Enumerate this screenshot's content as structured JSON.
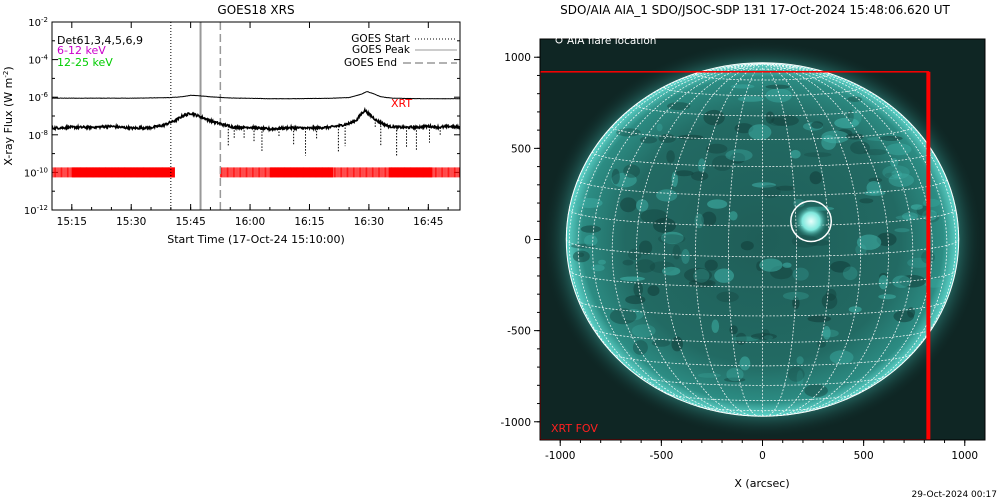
{
  "goes_chart": {
    "title": "GOES18 XRS",
    "ylabel": "X-ray Flux (W m",
    "ylabel_sup": "-2",
    "ylabel_close": ")",
    "xlabel": "Start Time (17-Oct-24 15:10:00)",
    "channels": {
      "det": "Det61,3,4,5,6,9",
      "low": "6-12 keV",
      "high": "12-25 keV"
    },
    "legend": {
      "start": "GOES Start",
      "peak": "GOES Peak",
      "end": "GOES End"
    },
    "xrt_label": "XRT",
    "colors": {
      "low_channel": "#cc00cc",
      "high_channel": "#00cc00",
      "xrt": "#ff0000"
    }
  },
  "aia_image": {
    "title": "SDO/AIA AIA_1 SDO/JSOC-SDP 131 17-Oct-2024 15:48:06.620 UT",
    "legend_label": "AIA flare location",
    "fov_label": "XRT FOV",
    "xlabel": "X (arcsec)",
    "colors": {
      "sun": "#2fa8a0",
      "fov": "#ff0000"
    }
  },
  "footer_timestamp": "29-Oct-2024 00:17",
  "chart_data": [
    {
      "type": "line",
      "title": "GOES18 XRS",
      "xlabel": "Start Time (17-Oct-24 15:10:00)",
      "ylabel": "X-ray Flux (W m-2)",
      "x_tick_labels": [
        "15:15",
        "15:30",
        "15:45",
        "16:00",
        "16:15",
        "16:30",
        "16:45"
      ],
      "x_ticks_min": [
        5,
        20,
        35,
        50,
        65,
        80,
        95
      ],
      "xlim_min": [
        0,
        103
      ],
      "y_tick_exponents": [
        -2,
        -4,
        -6,
        -8,
        -10,
        -12
      ],
      "ylim_log10": [
        -12,
        -2
      ],
      "y_scale": "log",
      "series": [
        {
          "name": "6-12 keV",
          "x_min": [
            0,
            10,
            20,
            25,
            30,
            33,
            35,
            37,
            40,
            45,
            50,
            55,
            60,
            65,
            70,
            75,
            78,
            79.5,
            81,
            83,
            86,
            90,
            95,
            100,
            103
          ],
          "log10_y": [
            -6.05,
            -6.05,
            -6.05,
            -6.04,
            -6.02,
            -5.97,
            -5.9,
            -5.92,
            -5.98,
            -6.04,
            -6.06,
            -6.08,
            -6.08,
            -6.07,
            -6.06,
            -6.02,
            -5.85,
            -5.7,
            -5.8,
            -5.98,
            -6.05,
            -6.07,
            -6.08,
            -6.08,
            -6.08
          ]
        },
        {
          "name": "12-25 keV",
          "x_min": [
            0,
            5,
            10,
            15,
            20,
            25,
            28,
            31,
            33,
            35,
            37,
            40,
            43,
            46,
            50,
            55,
            60,
            65,
            70,
            73,
            75,
            77,
            78,
            79,
            80,
            82,
            85,
            88,
            92,
            95,
            98,
            100,
            103
          ],
          "log10_y": [
            -7.65,
            -7.6,
            -7.6,
            -7.55,
            -7.65,
            -7.62,
            -7.5,
            -7.25,
            -7.0,
            -6.85,
            -7.0,
            -7.25,
            -7.45,
            -7.6,
            -7.6,
            -7.7,
            -7.62,
            -7.65,
            -7.6,
            -7.5,
            -7.4,
            -7.2,
            -6.9,
            -6.7,
            -6.9,
            -7.25,
            -7.55,
            -7.6,
            -7.6,
            -7.55,
            -7.6,
            -7.55,
            -7.6
          ]
        }
      ],
      "markers": {
        "goes_start_min": 30,
        "goes_peak_min": 37.5,
        "goes_end_min": 42.5
      },
      "xrt_coverage_min": [
        [
          0,
          31
        ],
        [
          42.5,
          103
        ]
      ],
      "xrt_level_log10": -10
    },
    {
      "type": "heatmap",
      "title": "SDO/AIA AIA_1 SDO/JSOC-SDP 131 17-Oct-2024 15:48:06.620 UT",
      "xlabel": "X (arcsec)",
      "x_tick_labels": [
        "-1000",
        "-500",
        "0",
        "500",
        "1000"
      ],
      "y_tick_labels": [
        "1000",
        "500",
        "0",
        "-500",
        "-1000"
      ],
      "ticks_arcsec": [
        -1000,
        -500,
        0,
        500,
        1000
      ],
      "xlim": [
        -1100,
        1100
      ],
      "ylim": [
        -1100,
        1100
      ],
      "solar_radius_arcsec": 970,
      "grid_step_deg": 10,
      "flare_location_arcsec": [
        240,
        100
      ],
      "flare_circle_radius_arcsec": 100,
      "xrt_fov_arcsec": {
        "x": [
          -1100,
          820
        ],
        "y": [
          -1100,
          920
        ]
      }
    }
  ]
}
